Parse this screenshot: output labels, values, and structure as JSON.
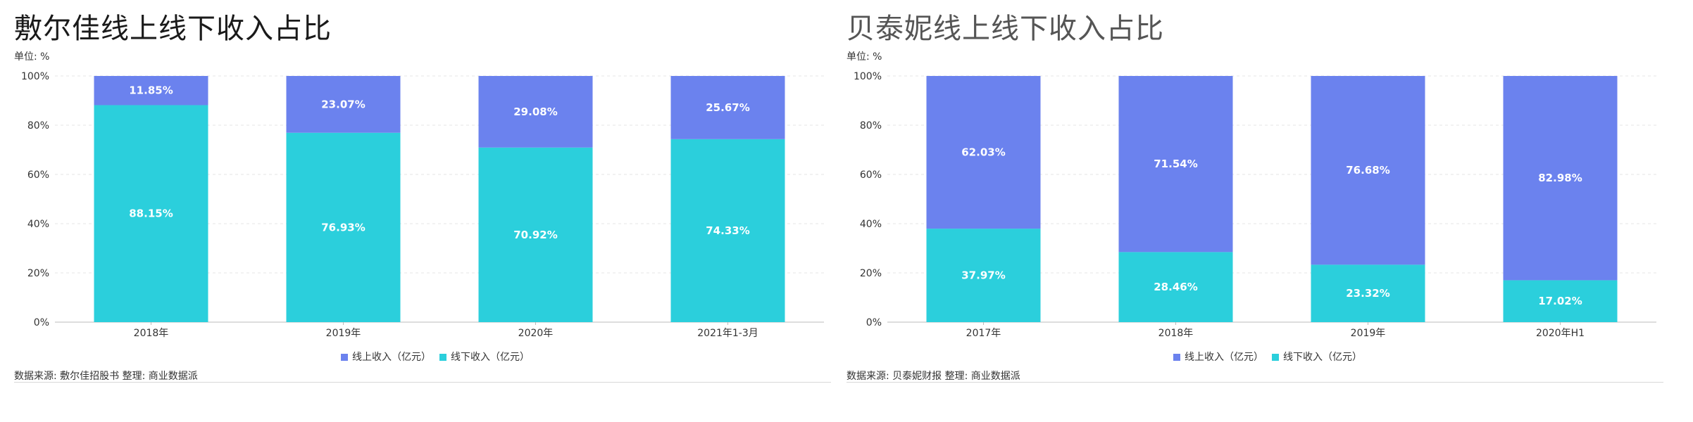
{
  "colors": {
    "online": "#6b82ee",
    "offline": "#2bcfdc",
    "grid": "#e6e6e6",
    "axis": "#bbbbbb"
  },
  "chart_data": [
    {
      "type": "bar",
      "stacked": true,
      "title": "敷尔佳线上线下收入占比",
      "unit_label": "单位: %",
      "categories": [
        "2018年",
        "2019年",
        "2020年",
        "2021年1-3月"
      ],
      "series": [
        {
          "name": "线上收入（亿元）",
          "values": [
            11.85,
            23.07,
            29.08,
            25.67
          ],
          "labels": [
            "11.85%",
            "23.07%",
            "29.08%",
            "25.67%"
          ]
        },
        {
          "name": "线下收入（亿元）",
          "values": [
            88.15,
            76.93,
            70.92,
            74.33
          ],
          "labels": [
            "88.15%",
            "76.93%",
            "70.92%",
            "74.33%"
          ]
        }
      ],
      "yticks": [
        "0%",
        "20%",
        "40%",
        "60%",
        "80%",
        "100%"
      ],
      "ylim": [
        0,
        100
      ],
      "grid": true,
      "legend_position": "bottom",
      "source": "数据来源: 敷尔佳招股书 整理: 商业数据派"
    },
    {
      "type": "bar",
      "stacked": true,
      "title": "贝泰妮线上线下收入占比",
      "unit_label": "单位: %",
      "categories": [
        "2017年",
        "2018年",
        "2019年",
        "2020年H1"
      ],
      "series": [
        {
          "name": "线上收入（亿元）",
          "values": [
            62.03,
            71.54,
            76.68,
            82.98
          ],
          "labels": [
            "62.03%",
            "71.54%",
            "76.68%",
            "82.98%"
          ]
        },
        {
          "name": "线下收入（亿元）",
          "values": [
            37.97,
            28.46,
            23.32,
            17.02
          ],
          "labels": [
            "37.97%",
            "28.46%",
            "23.32%",
            "17.02%"
          ]
        }
      ],
      "yticks": [
        "0%",
        "20%",
        "40%",
        "60%",
        "80%",
        "100%"
      ],
      "ylim": [
        0,
        100
      ],
      "grid": true,
      "legend_position": "bottom",
      "source": "数据来源: 贝泰妮财报 整理: 商业数据派"
    }
  ]
}
